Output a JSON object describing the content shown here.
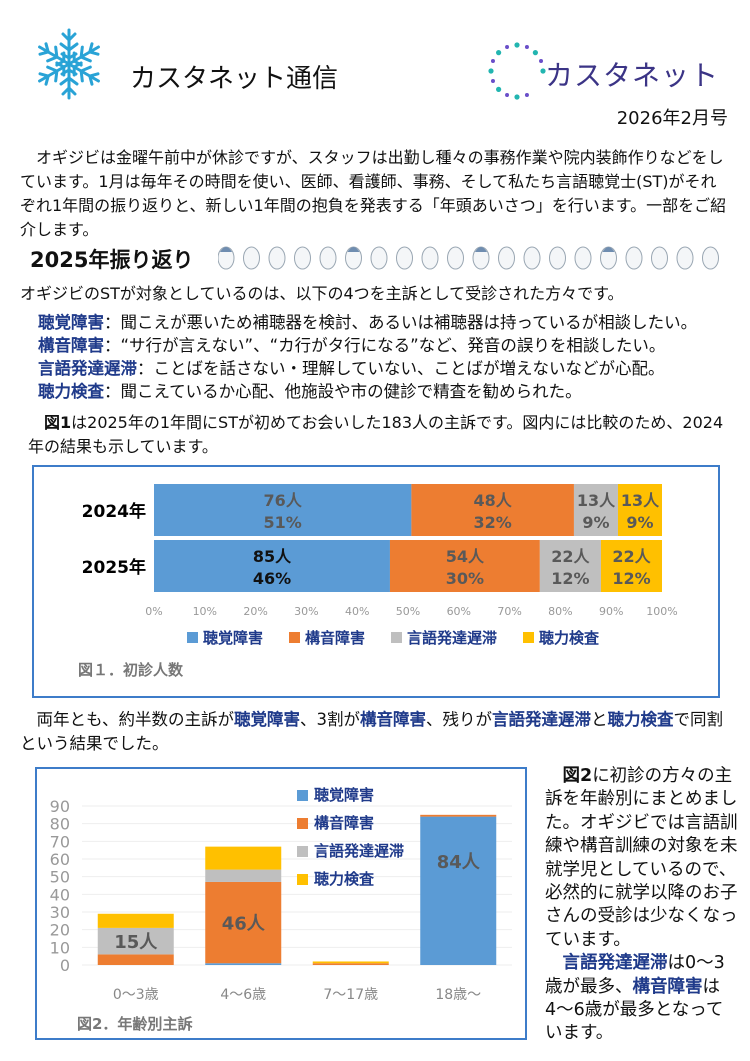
{
  "header": {
    "title": "カスタネット通信",
    "logo_text": "カスタネット",
    "date": "2026年2月号"
  },
  "intro": "オギジビは金曜午前中が休診ですが、スタッフは出勤し種々の事務作業や院内装飾作りなどをしています。1月は毎年その時間を使い、医師、看護師、事務、そして私たち言語聴覚士(ST)がそれぞれ1年間の振り返りと、新しい1年間の抱負を発表する「年頭あいさつ」を行います。一部をご紹介します。",
  "section": {
    "heading": "2025年振り返り",
    "lead": "オギジビのSTが対象としているのは、以下の4つを主訴として受診された方々です。",
    "items": [
      {
        "term": "聴覚障害",
        "desc": "：聞こえが悪いため補聴器を検討、あるいは補聴器は持っているが相談したい。"
      },
      {
        "term": "構音障害",
        "desc": "：“サ行が言えない”、“カ行がタ行になる”など、発音の誤りを相談したい。"
      },
      {
        "term": "言語発達遅滞",
        "desc": "：ことばを話さない・理解していない、ことばが増えないなどが心配。"
      },
      {
        "term": "聴力検査",
        "desc": "：聞こえているか心配、他施設や市の健診で精査を勧められた。"
      }
    ]
  },
  "fig1_text": {
    "ref": "図1",
    "rest": "は2025年の1年間にSTが初めてお会いした183人の主訴です。図内には比較のため、2024年の結果も示しています。"
  },
  "para2": {
    "s1": "両年とも、約半数の主訴が",
    "t1": "聴覚障害",
    "s2": "、3割が",
    "t2": "構音障害",
    "s3": "、残りが",
    "t3": "言語発達遅滞",
    "s4": "と",
    "t4": "聴力検査",
    "s5": "で同割という結果でした。"
  },
  "right_text": {
    "ref": "図2",
    "p1": "に初診の方々の主訴を年齢別にまとめました。オギジビでは言語訓練や構音訓練の対象を未就学児としているので、必然的に就学以降のお子さんの受診は少なくなっています。",
    "t1": "言語発達遅滞",
    "p2a": "は0〜3歳が最多、",
    "t2": "構音障害",
    "p2b": "は4〜6歳が最多となっています。"
  },
  "colors": {
    "聴覚障害": "#5b9bd5",
    "構音障害": "#ed7d31",
    "言語発達遅滞": "#bfbfbf",
    "聴力検査": "#ffc000",
    "accent": "#1f3a8a",
    "border": "#3d7cc9"
  },
  "chart_data": [
    {
      "type": "bar",
      "orientation": "horizontal",
      "stacked": "percent",
      "caption": "図１．初診人数",
      "categories": [
        "2024年",
        "2025年"
      ],
      "series": [
        {
          "name": "聴覚障害",
          "counts": [
            76,
            85
          ],
          "labels": [
            [
              "76人",
              "51%"
            ],
            [
              "85人",
              "46%"
            ]
          ]
        },
        {
          "name": "構音障害",
          "counts": [
            48,
            54
          ],
          "labels": [
            [
              "48人",
              "32%"
            ],
            [
              "54人",
              "30%"
            ]
          ]
        },
        {
          "name": "言語発達遅滞",
          "counts": [
            13,
            22
          ],
          "labels": [
            [
              "13人",
              "9%"
            ],
            [
              "22人",
              "12%"
            ]
          ]
        },
        {
          "name": "聴力検査",
          "counts": [
            13,
            22
          ],
          "labels": [
            [
              "13人",
              "9%"
            ],
            [
              "22人",
              "12%"
            ]
          ]
        }
      ],
      "xticks": [
        "0%",
        "10%",
        "20%",
        "30%",
        "40%",
        "50%",
        "60%",
        "70%",
        "80%",
        "90%",
        "100%"
      ],
      "legend": "bottom"
    },
    {
      "type": "bar",
      "stacked": true,
      "caption": "図2．年齢別主訴",
      "categories": [
        "0〜3歳",
        "4〜6歳",
        "7〜17歳",
        "18歳〜"
      ],
      "series": [
        {
          "name": "聴覚障害",
          "values": [
            0,
            1,
            0,
            84
          ]
        },
        {
          "name": "構音障害",
          "values": [
            6,
            46,
            1,
            1
          ]
        },
        {
          "name": "言語発達遅滞",
          "values": [
            15,
            7,
            0,
            0
          ]
        },
        {
          "name": "聴力検査",
          "values": [
            8,
            13,
            1,
            0
          ]
        }
      ],
      "data_labels": [
        {
          "category": "0〜3歳",
          "series": "言語発達遅滞",
          "text": "15人"
        },
        {
          "category": "4〜6歳",
          "series": "構音障害",
          "text": "46人"
        },
        {
          "category": "18歳〜",
          "series": "聴覚障害",
          "text": "84人"
        }
      ],
      "ylim": [
        0,
        90
      ],
      "yticks": [
        0,
        10,
        20,
        30,
        40,
        50,
        60,
        70,
        80,
        90
      ],
      "grid": true,
      "legend": "top-center"
    }
  ]
}
